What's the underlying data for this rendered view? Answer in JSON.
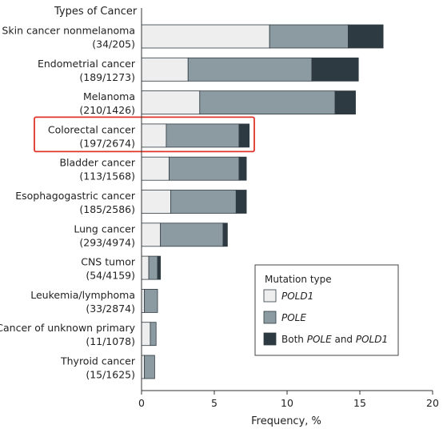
{
  "chart_data": {
    "type": "bar",
    "orientation": "horizontal",
    "stacked": true,
    "y_axis_title": "Types of Cancer",
    "xlabel": "Frequency, %",
    "xlim": [
      0,
      20
    ],
    "xticks": [
      "0",
      "5",
      "10",
      "15",
      "20"
    ],
    "grid": false,
    "legend_position": "bottom-right",
    "legend_title": "Mutation type",
    "highlighted_category": "Colorectal cancer",
    "highlight_color": "#e0342a",
    "categories": [
      {
        "name": "Skin cancer nonmelanoma",
        "counts": "(34/205)"
      },
      {
        "name": "Endometrial cancer",
        "counts": "(189/1273)"
      },
      {
        "name": "Melanoma",
        "counts": "(210/1426)"
      },
      {
        "name": "Colorectal cancer",
        "counts": "(197/2674)"
      },
      {
        "name": "Bladder cancer",
        "counts": "(113/1568)"
      },
      {
        "name": "Esophagogastric cancer",
        "counts": "(185/2586)"
      },
      {
        "name": "Lung cancer",
        "counts": "(293/4974)"
      },
      {
        "name": "CNS tumor",
        "counts": "(54/4159)"
      },
      {
        "name": "Leukemia/lymphoma",
        "counts": "(33/2874)"
      },
      {
        "name": "Cancer of unknown primary",
        "counts": "(11/1078)"
      },
      {
        "name": "Thyroid cancer",
        "counts": "(15/1625)"
      }
    ],
    "series": [
      {
        "key": "POLD1",
        "color": "#eeeeee",
        "values": [
          8.8,
          3.2,
          4.0,
          1.7,
          1.9,
          2.0,
          1.3,
          0.5,
          0.2,
          0.6,
          0.2
        ]
      },
      {
        "key": "POLE",
        "color": "#8c9ba2",
        "values": [
          5.4,
          8.5,
          9.3,
          5.0,
          4.8,
          4.5,
          4.3,
          0.6,
          0.9,
          0.4,
          0.7
        ]
      },
      {
        "key": "Both",
        "color": "#2e3a41",
        "values": [
          2.4,
          3.2,
          1.4,
          0.7,
          0.5,
          0.7,
          0.3,
          0.2,
          0.0,
          0.0,
          0.0
        ]
      }
    ],
    "legend": [
      {
        "key": "POLD1",
        "parts": [
          {
            "text": "POLD1",
            "italic": true
          }
        ]
      },
      {
        "key": "POLE",
        "parts": [
          {
            "text": "POLE",
            "italic": true
          }
        ]
      },
      {
        "key": "Both",
        "parts": [
          {
            "text": "Both ",
            "italic": false
          },
          {
            "text": "POLE",
            "italic": true
          },
          {
            "text": " and ",
            "italic": false
          },
          {
            "text": "POLD1",
            "italic": true
          }
        ]
      }
    ]
  }
}
